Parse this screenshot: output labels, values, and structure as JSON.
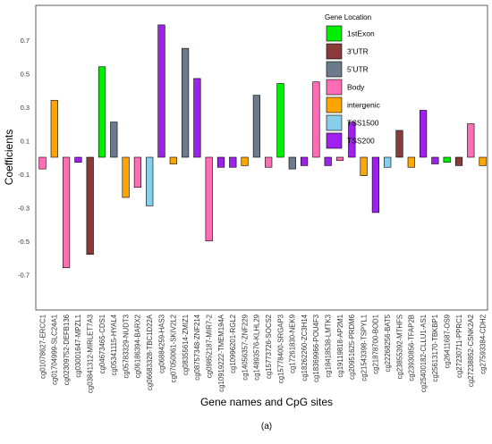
{
  "chart_data": {
    "type": "bar",
    "xlabel": "Gene names and CpG sites",
    "ylabel": "Coefficients",
    "caption": "(a)",
    "ylim": [
      -0.78,
      0.92
    ],
    "yticks": [
      0.7,
      0.5,
      0.3,
      0.1,
      -0.1,
      -0.3,
      -0.5,
      -0.7
    ],
    "ytick_labels": [
      "0.7",
      "0.5",
      "0.3",
      "0.1",
      "-0.1",
      "-0.3",
      "-0.5",
      "-0.7"
    ],
    "legend": {
      "title": "Gene Location",
      "position": "top-right",
      "entries": [
        {
          "label": "1stExon",
          "color": "#00ee00"
        },
        {
          "label": "3'UTR",
          "color": "#8b3a3a"
        },
        {
          "label": "5'UTR",
          "color": "#6c7b8b"
        },
        {
          "label": "Body",
          "color": "#ff6eb4"
        },
        {
          "label": "intergenic",
          "color": "#ffa500"
        },
        {
          "label": "TSS1500",
          "color": "#87ceeb"
        },
        {
          "label": "TSS200",
          "color": "#a020f0"
        }
      ]
    },
    "categories": [
      "cg01078627-ERCC1",
      "cg01704999-SLC24A1",
      "cg02309752-DEFB136",
      "cg03001647-MPZL1",
      "cg03841312-MIRLET7A3",
      "cg04673465-CDS1",
      "cg05341115-HYAL4",
      "cg05783329-NUDT3",
      "cg06186394-BARX2",
      "cg06683328-TBC1D22A",
      "cg06884259-HAS3",
      "cg07050061-SKIV2L2",
      "cg08355614-ZMIZ1",
      "cg08757348-ZNF214",
      "cg09852187-MIR7-2",
      "cg10919222-TMEM194A",
      "cg10996201-RGL2",
      "cg14056357-ZNF229",
      "cg14893576-KLHL29",
      "cg15773726-SOCS2",
      "cg15778400-SRGAP3",
      "cg17261830-NEK9",
      "cg18262260-ZC3H14",
      "cg18369966-POU4F3",
      "cg18418538-LMTK3",
      "cg19119818-AP2M1",
      "cg20951625-PRDM6",
      "cg21543398-TSPYL1",
      "cg21878700-BOD1",
      "cg22268256-BAT5",
      "cg23855392-MTHFS",
      "cg23930856-TFAP2B",
      "cg25400182-CLLU1-AS1",
      "cg25613170-TBKBP1",
      "cg26411687-OS9",
      "cg27230711-PPRC1",
      "cg27238852-CSNK2A2",
      "cg27593384-CDH2"
    ],
    "values": [
      -0.07,
      0.34,
      -0.66,
      -0.03,
      -0.58,
      0.54,
      0.21,
      -0.24,
      -0.18,
      -0.29,
      0.79,
      -0.04,
      0.65,
      0.47,
      -0.5,
      -0.06,
      -0.06,
      -0.05,
      0.37,
      -0.06,
      0.44,
      -0.07,
      -0.05,
      0.45,
      -0.05,
      -0.02,
      0.21,
      -0.11,
      -0.33,
      -0.06,
      0.16,
      -0.06,
      0.28,
      -0.04,
      -0.03,
      -0.05,
      0.2,
      -0.05
    ],
    "locations": [
      "Body",
      "intergenic",
      "Body",
      "TSS200",
      "3'UTR",
      "1stExon",
      "5'UTR",
      "intergenic",
      "Body",
      "TSS1500",
      "TSS200",
      "intergenic",
      "5'UTR",
      "TSS200",
      "Body",
      "TSS200",
      "TSS200",
      "intergenic",
      "5'UTR",
      "Body",
      "1stExon",
      "5'UTR",
      "TSS200",
      "Body",
      "TSS200",
      "Body",
      "TSS200",
      "intergenic",
      "TSS200",
      "TSS1500",
      "3'UTR",
      "intergenic",
      "TSS200",
      "TSS200",
      "1stExon",
      "3'UTR",
      "Body",
      "intergenic"
    ],
    "grid": false,
    "frame": true
  }
}
